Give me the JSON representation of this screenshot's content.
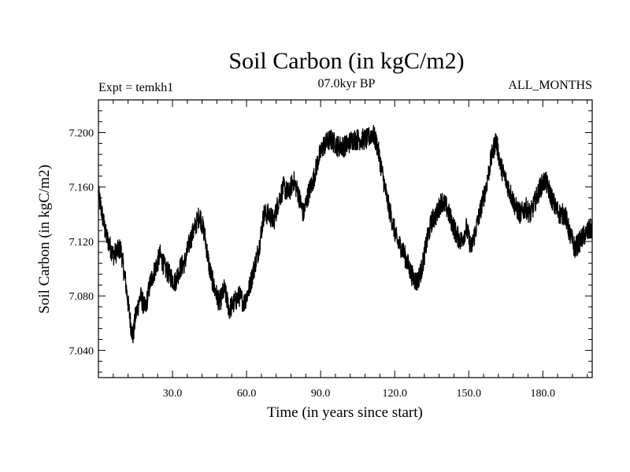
{
  "chart_data": {
    "type": "line",
    "title": "Soil Carbon (in kgC/m2)",
    "subtitle": "07.0kyr BP",
    "left_label": "Expt = temkh1",
    "right_label": "ALL_MONTHS",
    "xlabel": "Time (in years since start)",
    "ylabel": "Soil Carbon (in kgC/m2)",
    "xlim": [
      0,
      200
    ],
    "ylim": [
      7.02,
      7.224
    ],
    "x_ticks": [
      {
        "value": 30,
        "label": "30.0"
      },
      {
        "value": 60,
        "label": "60.0"
      },
      {
        "value": 90,
        "label": "90.0"
      },
      {
        "value": 120,
        "label": "120.0"
      },
      {
        "value": 150,
        "label": "150.0"
      },
      {
        "value": 180,
        "label": "180.0"
      }
    ],
    "y_ticks": [
      {
        "value": 7.04,
        "label": "7.040"
      },
      {
        "value": 7.08,
        "label": "7.080"
      },
      {
        "value": 7.12,
        "label": "7.120"
      },
      {
        "value": 7.16,
        "label": "7.160"
      },
      {
        "value": 7.2,
        "label": "7.200"
      }
    ],
    "series": [
      {
        "name": "soil_carbon",
        "noise_amplitude": 0.008,
        "points": [
          [
            0,
            7.155
          ],
          [
            3,
            7.125
          ],
          [
            6,
            7.11
          ],
          [
            9,
            7.115
          ],
          [
            11,
            7.09
          ],
          [
            13,
            7.06
          ],
          [
            14,
            7.05
          ],
          [
            15,
            7.065
          ],
          [
            17,
            7.08
          ],
          [
            19,
            7.07
          ],
          [
            21,
            7.09
          ],
          [
            23,
            7.1
          ],
          [
            25,
            7.11
          ],
          [
            27,
            7.1
          ],
          [
            29,
            7.095
          ],
          [
            31,
            7.09
          ],
          [
            33,
            7.1
          ],
          [
            35,
            7.105
          ],
          [
            37,
            7.12
          ],
          [
            39,
            7.13
          ],
          [
            41,
            7.14
          ],
          [
            43,
            7.125
          ],
          [
            45,
            7.1
          ],
          [
            47,
            7.085
          ],
          [
            49,
            7.075
          ],
          [
            51,
            7.085
          ],
          [
            53,
            7.07
          ],
          [
            55,
            7.075
          ],
          [
            57,
            7.08
          ],
          [
            59,
            7.075
          ],
          [
            61,
            7.085
          ],
          [
            63,
            7.1
          ],
          [
            65,
            7.115
          ],
          [
            67,
            7.14
          ],
          [
            69,
            7.14
          ],
          [
            71,
            7.135
          ],
          [
            73,
            7.15
          ],
          [
            75,
            7.16
          ],
          [
            77,
            7.155
          ],
          [
            79,
            7.165
          ],
          [
            81,
            7.155
          ],
          [
            83,
            7.14
          ],
          [
            85,
            7.155
          ],
          [
            87,
            7.165
          ],
          [
            89,
            7.18
          ],
          [
            91,
            7.19
          ],
          [
            94,
            7.195
          ],
          [
            97,
            7.19
          ],
          [
            100,
            7.19
          ],
          [
            103,
            7.195
          ],
          [
            106,
            7.195
          ],
          [
            109,
            7.195
          ],
          [
            111,
            7.2
          ],
          [
            113,
            7.19
          ],
          [
            115,
            7.17
          ],
          [
            117,
            7.15
          ],
          [
            119,
            7.135
          ],
          [
            121,
            7.12
          ],
          [
            123,
            7.115
          ],
          [
            125,
            7.105
          ],
          [
            127,
            7.095
          ],
          [
            129,
            7.09
          ],
          [
            131,
            7.1
          ],
          [
            133,
            7.12
          ],
          [
            135,
            7.135
          ],
          [
            137,
            7.14
          ],
          [
            139,
            7.15
          ],
          [
            141,
            7.145
          ],
          [
            143,
            7.135
          ],
          [
            145,
            7.125
          ],
          [
            147,
            7.12
          ],
          [
            149,
            7.13
          ],
          [
            151,
            7.115
          ],
          [
            153,
            7.13
          ],
          [
            155,
            7.145
          ],
          [
            157,
            7.16
          ],
          [
            159,
            7.18
          ],
          [
            161,
            7.195
          ],
          [
            163,
            7.175
          ],
          [
            165,
            7.165
          ],
          [
            167,
            7.155
          ],
          [
            169,
            7.145
          ],
          [
            171,
            7.14
          ],
          [
            173,
            7.145
          ],
          [
            175,
            7.14
          ],
          [
            177,
            7.15
          ],
          [
            179,
            7.16
          ],
          [
            181,
            7.165
          ],
          [
            183,
            7.155
          ],
          [
            185,
            7.145
          ],
          [
            187,
            7.14
          ],
          [
            189,
            7.14
          ],
          [
            191,
            7.125
          ],
          [
            193,
            7.115
          ],
          [
            195,
            7.12
          ],
          [
            197,
            7.125
          ],
          [
            200,
            7.13
          ]
        ]
      }
    ]
  }
}
